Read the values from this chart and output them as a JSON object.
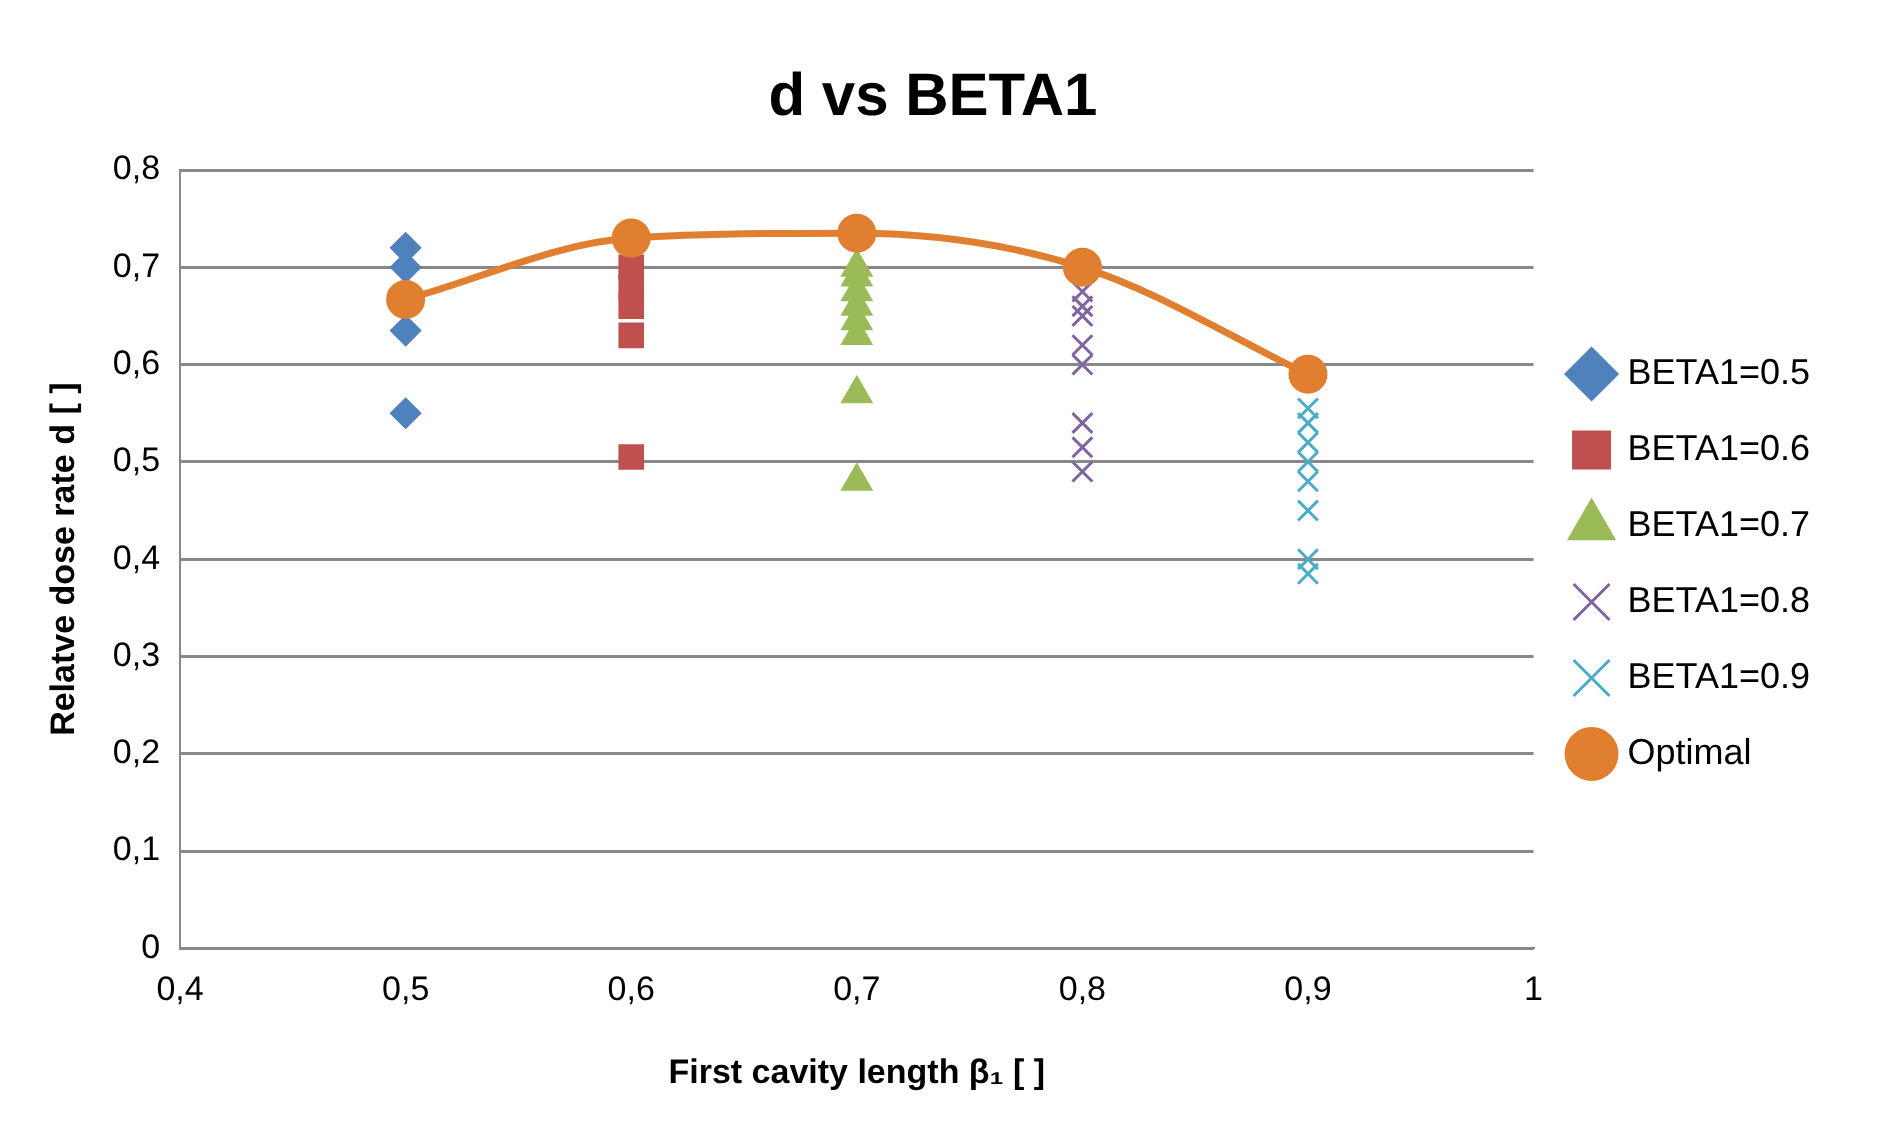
{
  "chart_data": {
    "type": "scatter",
    "title": "d vs BETA1",
    "xlabel": "First cavity length β₁ [ ]",
    "ylabel": "Relatve dose rate d [ ]",
    "xlim": [
      0.4,
      1
    ],
    "xticks": [
      {
        "value": 0.4,
        "label": "0,4"
      },
      {
        "value": 0.5,
        "label": "0,5"
      },
      {
        "value": 0.6,
        "label": "0,6"
      },
      {
        "value": 0.7,
        "label": "0,7"
      },
      {
        "value": 0.8,
        "label": "0,8"
      },
      {
        "value": 0.9,
        "label": "0,9"
      },
      1
    ],
    "ylim": [
      0,
      0.8
    ],
    "yticks": [
      0,
      {
        "value": 0.1,
        "label": "0,1"
      },
      {
        "value": 0.2,
        "label": "0,2"
      },
      {
        "value": 0.3,
        "label": "0,3"
      },
      {
        "value": 0.4,
        "label": "0,4"
      },
      {
        "value": 0.5,
        "label": "0,5"
      },
      {
        "value": 0.6,
        "label": "0,6"
      },
      {
        "value": 0.7,
        "label": "0,7"
      },
      {
        "value": 0.8,
        "label": "0,8"
      }
    ],
    "grid": "y",
    "legend": "right",
    "series": [
      {
        "name": "BETA1=0.5",
        "color": "#4f81bd",
        "marker": "diamond",
        "x": [
          0.5,
          0.5,
          0.5,
          0.5
        ],
        "values": [
          0.72,
          0.7,
          0.635,
          0.55
        ]
      },
      {
        "name": "BETA1=0.6",
        "color": "#c0504d",
        "marker": "square",
        "x": [
          0.6,
          0.6,
          0.6,
          0.6,
          0.6
        ],
        "values": [
          0.7,
          0.68,
          0.66,
          0.63,
          0.505
        ]
      },
      {
        "name": "BETA1=0.7",
        "color": "#9bbb59",
        "marker": "triangle",
        "x": [
          0.7,
          0.7,
          0.7,
          0.7,
          0.7,
          0.7,
          0.7,
          0.7
        ],
        "values": [
          0.7,
          0.69,
          0.675,
          0.66,
          0.645,
          0.63,
          0.57,
          0.48
        ]
      },
      {
        "name": "BETA1=0.8",
        "color": "#8064a2",
        "marker": "cross",
        "x": [
          0.8,
          0.8,
          0.8,
          0.8,
          0.8,
          0.8,
          0.8,
          0.8
        ],
        "values": [
          0.675,
          0.66,
          0.65,
          0.62,
          0.6,
          0.54,
          0.515,
          0.49
        ]
      },
      {
        "name": "BETA1=0.9",
        "color": "#4bacc6",
        "marker": "cross",
        "x": [
          0.9,
          0.9,
          0.9,
          0.9,
          0.9,
          0.9,
          0.9,
          0.9
        ],
        "values": [
          0.555,
          0.54,
          0.52,
          0.5,
          0.48,
          0.45,
          0.4,
          0.385
        ]
      },
      {
        "name": "Optimal",
        "type": "line",
        "color": "#e07f30",
        "marker": "circle",
        "x": [
          0.5,
          0.6,
          0.7,
          0.8,
          0.9
        ],
        "values": [
          0.667,
          0.73,
          0.735,
          0.7,
          0.59
        ]
      }
    ]
  }
}
